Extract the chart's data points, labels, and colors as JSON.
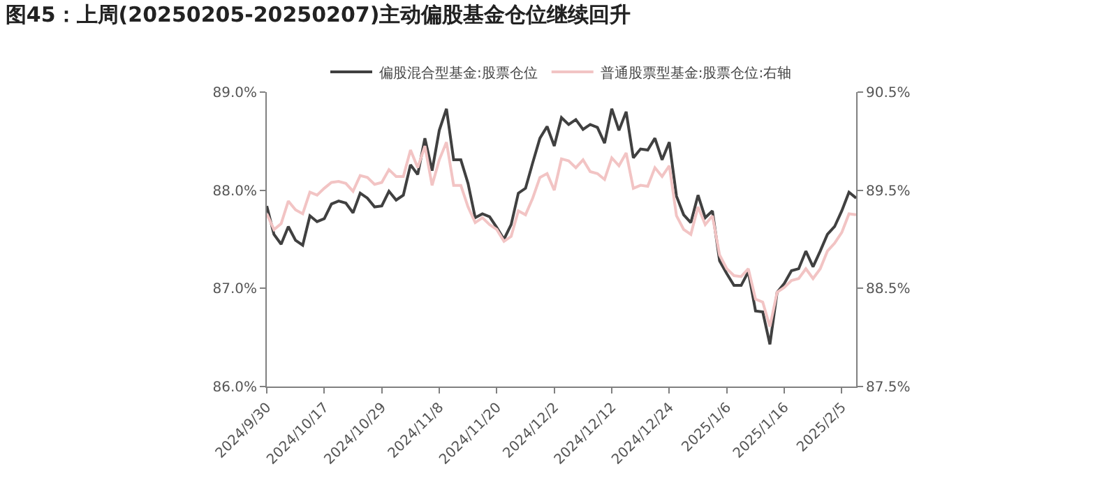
{
  "chart_data": {
    "type": "line",
    "title": "图45：上周(20250205-20250207)主动偏股基金仓位继续回升",
    "categories": [
      "2024/9/30",
      null,
      null,
      null,
      null,
      null,
      null,
      null,
      "2024/10/17",
      null,
      null,
      null,
      null,
      null,
      null,
      null,
      "2024/10/29",
      null,
      null,
      null,
      null,
      null,
      null,
      null,
      "2024/11/8",
      null,
      null,
      null,
      null,
      null,
      null,
      null,
      "2024/11/20",
      null,
      null,
      null,
      null,
      null,
      null,
      null,
      "2024/12/2",
      null,
      null,
      null,
      null,
      null,
      null,
      null,
      "2024/12/12",
      null,
      null,
      null,
      null,
      null,
      null,
      null,
      "2024/12/24",
      null,
      null,
      null,
      null,
      null,
      null,
      null,
      "2025/1/6",
      null,
      null,
      null,
      null,
      null,
      null,
      null,
      "2025/1/16",
      null,
      null,
      null,
      null,
      null,
      null,
      null,
      "2025/2/5",
      null,
      null
    ],
    "series": [
      {
        "name": "偏股混合型基金:股票仓位",
        "color": "#404040",
        "values": [
          87.84,
          87.55,
          87.45,
          87.63,
          87.49,
          87.44,
          87.74,
          87.68,
          87.71,
          87.86,
          87.89,
          87.87,
          87.77,
          87.97,
          87.92,
          87.83,
          87.84,
          87.99,
          87.9,
          87.95,
          88.26,
          88.16,
          88.53,
          88.2,
          88.61,
          88.83,
          88.31,
          88.31,
          88.07,
          87.72,
          87.76,
          87.73,
          87.62,
          87.5,
          87.65,
          87.97,
          88.02,
          88.28,
          88.53,
          88.65,
          88.45,
          88.74,
          88.67,
          88.72,
          88.62,
          88.67,
          88.64,
          88.48,
          88.83,
          88.61,
          88.8,
          88.33,
          88.42,
          88.41,
          88.53,
          88.31,
          88.49,
          87.94,
          87.75,
          87.67,
          87.95,
          87.72,
          87.79,
          87.28,
          87.15,
          87.03,
          87.03,
          87.17,
          86.77,
          86.76,
          86.43,
          86.96,
          87.05,
          87.18,
          87.2,
          87.38,
          87.22,
          87.38,
          87.55,
          87.63,
          87.79,
          87.98,
          87.92
        ]
      },
      {
        "name": "普通股票型基金:股票仓位:右轴",
        "color": "#f2c4c4",
        "axis": "y2",
        "values": [
          89.26,
          89.1,
          89.16,
          89.39,
          89.3,
          89.26,
          89.48,
          89.45,
          89.52,
          89.58,
          89.59,
          89.57,
          89.49,
          89.65,
          89.63,
          89.56,
          89.58,
          89.71,
          89.64,
          89.64,
          89.91,
          89.73,
          89.95,
          89.55,
          89.81,
          89.99,
          89.55,
          89.55,
          89.33,
          89.17,
          89.22,
          89.15,
          89.1,
          88.98,
          89.03,
          89.29,
          89.25,
          89.42,
          89.63,
          89.67,
          89.5,
          89.82,
          89.8,
          89.73,
          89.81,
          89.69,
          89.67,
          89.61,
          89.83,
          89.75,
          89.88,
          89.52,
          89.55,
          89.54,
          89.73,
          89.64,
          89.75,
          89.24,
          89.1,
          89.05,
          89.33,
          89.15,
          89.24,
          88.84,
          88.7,
          88.63,
          88.62,
          88.7,
          88.39,
          88.36,
          88.11,
          88.46,
          88.51,
          88.58,
          88.6,
          88.7,
          88.6,
          88.7,
          88.88,
          88.96,
          89.07,
          89.26,
          89.25
        ]
      }
    ],
    "ylim": [
      86,
      89
    ],
    "yticks": [
      {
        "value": 86,
        "label": "86.0%"
      },
      {
        "value": 87,
        "label": "87.0%"
      },
      {
        "value": 88,
        "label": "88.0%"
      },
      {
        "value": 89,
        "label": "89.0%"
      }
    ],
    "y2lim": [
      87.5,
      90.5
    ],
    "y2ticks": [
      {
        "value": 87.5,
        "label": "87.5%"
      },
      {
        "value": 88.5,
        "label": "88.5%"
      },
      {
        "value": 89.5,
        "label": "89.5%"
      },
      {
        "value": 90.5,
        "label": "90.5%"
      }
    ],
    "legend": "top",
    "marker": "none",
    "line_style": "solid"
  }
}
